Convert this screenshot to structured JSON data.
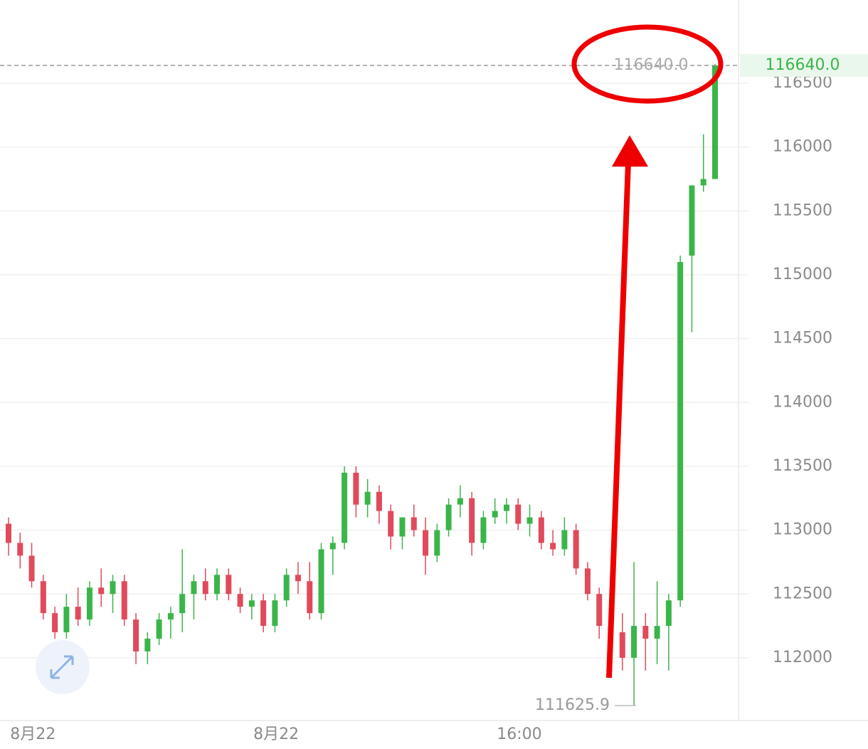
{
  "chart_data": {
    "type": "candlestick",
    "categories": [
      null,
      "8月22",
      null,
      null,
      null,
      null,
      null,
      null,
      null,
      null,
      null,
      null,
      null,
      null,
      null,
      null,
      null,
      null,
      null,
      null,
      null,
      null,
      "8月22",
      null,
      null,
      null,
      null,
      null,
      null,
      null,
      null,
      null,
      null,
      null,
      null,
      null,
      null,
      null,
      null,
      null,
      null,
      null,
      null,
      "16:00",
      null,
      null,
      null,
      null,
      null,
      null,
      null,
      null,
      null,
      null,
      null,
      null,
      null,
      null,
      null,
      null,
      null,
      null
    ],
    "open": [
      113050,
      112900,
      112800,
      112600,
      112350,
      112200,
      112400,
      112300,
      112550,
      112500,
      112600,
      112300,
      112050,
      112150,
      112300,
      112350,
      112500,
      112600,
      112500,
      112650,
      112500,
      112400,
      112450,
      112250,
      112450,
      112650,
      112600,
      112350,
      112850,
      112900,
      113450,
      113200,
      113300,
      113150,
      112950,
      113100,
      113000,
      112800,
      113000,
      113200,
      113250,
      112900,
      113100,
      113150,
      113200,
      113050,
      113100,
      112900,
      112850,
      113000,
      112700,
      112500,
      112250,
      112200,
      112000,
      112250,
      112150,
      112250,
      112450,
      115150,
      115700,
      115750
    ],
    "high": [
      113100,
      112980,
      112900,
      112650,
      112400,
      112500,
      112550,
      112600,
      112700,
      112650,
      112650,
      112350,
      112200,
      112350,
      112400,
      112850,
      112650,
      112700,
      112700,
      112700,
      112550,
      112500,
      112500,
      112500,
      112700,
      112750,
      112750,
      112900,
      112950,
      113500,
      113500,
      113400,
      113350,
      113200,
      113100,
      113200,
      113100,
      113050,
      113250,
      113350,
      113300,
      113150,
      113250,
      113250,
      113250,
      113200,
      113150,
      113000,
      113100,
      113050,
      112750,
      112550,
      112350,
      112350,
      112750,
      112350,
      112600,
      112500,
      115150,
      115700,
      116100,
      116650
    ],
    "low": [
      112800,
      112700,
      112550,
      112300,
      112150,
      112150,
      112250,
      112250,
      112400,
      112350,
      112250,
      111950,
      111950,
      112100,
      112150,
      112200,
      112300,
      112450,
      112450,
      112450,
      112350,
      112300,
      112200,
      112200,
      112400,
      112500,
      112300,
      112300,
      112650,
      112850,
      113100,
      113100,
      113050,
      112850,
      112850,
      112950,
      112650,
      112750,
      112950,
      113100,
      112800,
      112850,
      113050,
      113050,
      113000,
      112950,
      112850,
      112800,
      112800,
      112650,
      112450,
      112150,
      112100,
      111900,
      111625.9,
      111900,
      111950,
      111900,
      112400,
      114550,
      115650,
      115750
    ],
    "close": [
      112900,
      112800,
      112600,
      112350,
      112200,
      112400,
      112300,
      112550,
      112500,
      112600,
      112300,
      112050,
      112150,
      112300,
      112350,
      112500,
      112600,
      112500,
      112650,
      112500,
      112400,
      112450,
      112250,
      112450,
      112650,
      112600,
      112350,
      112850,
      112900,
      113450,
      113200,
      113300,
      113150,
      112950,
      113100,
      113000,
      112800,
      113000,
      113200,
      113250,
      112900,
      113100,
      113150,
      113200,
      113050,
      113100,
      112900,
      112850,
      113000,
      112700,
      112500,
      112250,
      112200,
      112000,
      112250,
      112150,
      112250,
      112450,
      115100,
      115700,
      115750,
      116640
    ],
    "up_color": "#3bb54a",
    "down_color": "#e04a5a",
    "ylim": [
      111520,
      117152
    ],
    "yticks": [
      112000,
      112500,
      113000,
      113500,
      114000,
      114500,
      115000,
      115500,
      116000,
      116500
    ],
    "grid": true,
    "last_price": {
      "value": 116640,
      "label": "116640.0"
    },
    "low_marker": {
      "value": 111625.9,
      "label": "111625.9"
    }
  }
}
